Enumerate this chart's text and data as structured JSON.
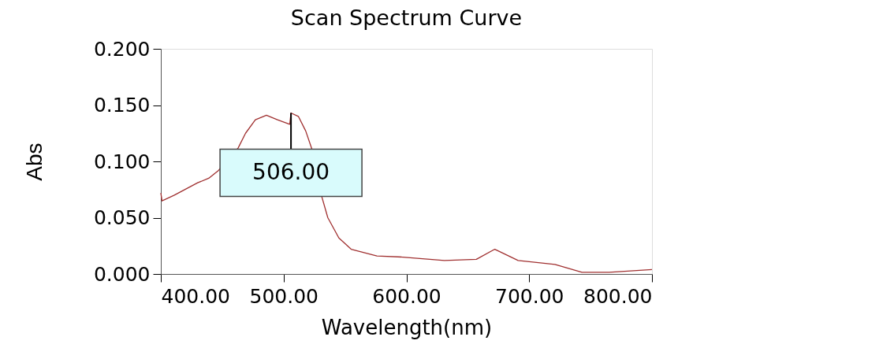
{
  "chart_data": {
    "type": "line",
    "title": "Scan Spectrum Curve",
    "xlabel": "Wavelength(nm)",
    "ylabel": "Abs",
    "x": [
      400,
      401,
      411,
      430,
      439,
      447,
      463,
      469,
      477,
      486,
      495,
      505,
      506,
      512,
      518,
      523,
      531,
      536,
      545,
      555,
      576,
      597,
      631,
      657,
      672,
      691,
      721,
      743,
      765,
      800
    ],
    "series": [
      {
        "color": "#a03030",
        "values": [
          0.072,
          0.065,
          0.07,
          0.081,
          0.085,
          0.092,
          0.112,
          0.125,
          0.137,
          0.141,
          0.137,
          0.133,
          0.143,
          0.14,
          0.127,
          0.111,
          0.069,
          0.05,
          0.032,
          0.022,
          0.016,
          0.015,
          0.012,
          0.013,
          0.022,
          0.012,
          0.0085,
          0.0015,
          0.0015,
          0.004
        ]
      }
    ],
    "xlim": [
      400,
      800
    ],
    "xticks": [
      {
        "value": 400,
        "label": "400.00"
      },
      {
        "value": 500,
        "label": "500.00"
      },
      {
        "value": 600,
        "label": "600.00"
      },
      {
        "value": 700,
        "label": "700.00"
      },
      {
        "value": 800,
        "label": "800.00"
      }
    ],
    "ylim": [
      0,
      0.2
    ],
    "yticks": [
      {
        "value": 0,
        "label": "0.000"
      },
      {
        "value": 0.05,
        "label": "0.050"
      },
      {
        "value": 0.1,
        "label": "0.100"
      },
      {
        "value": 0.15,
        "label": "0.150"
      },
      {
        "value": 0.2,
        "label": "0.200"
      }
    ],
    "annotations": [
      {
        "text": "506.00",
        "x": 506,
        "y": 0.143
      }
    ],
    "grid": false,
    "legend": false,
    "marker": "none",
    "line_style": "solid"
  }
}
